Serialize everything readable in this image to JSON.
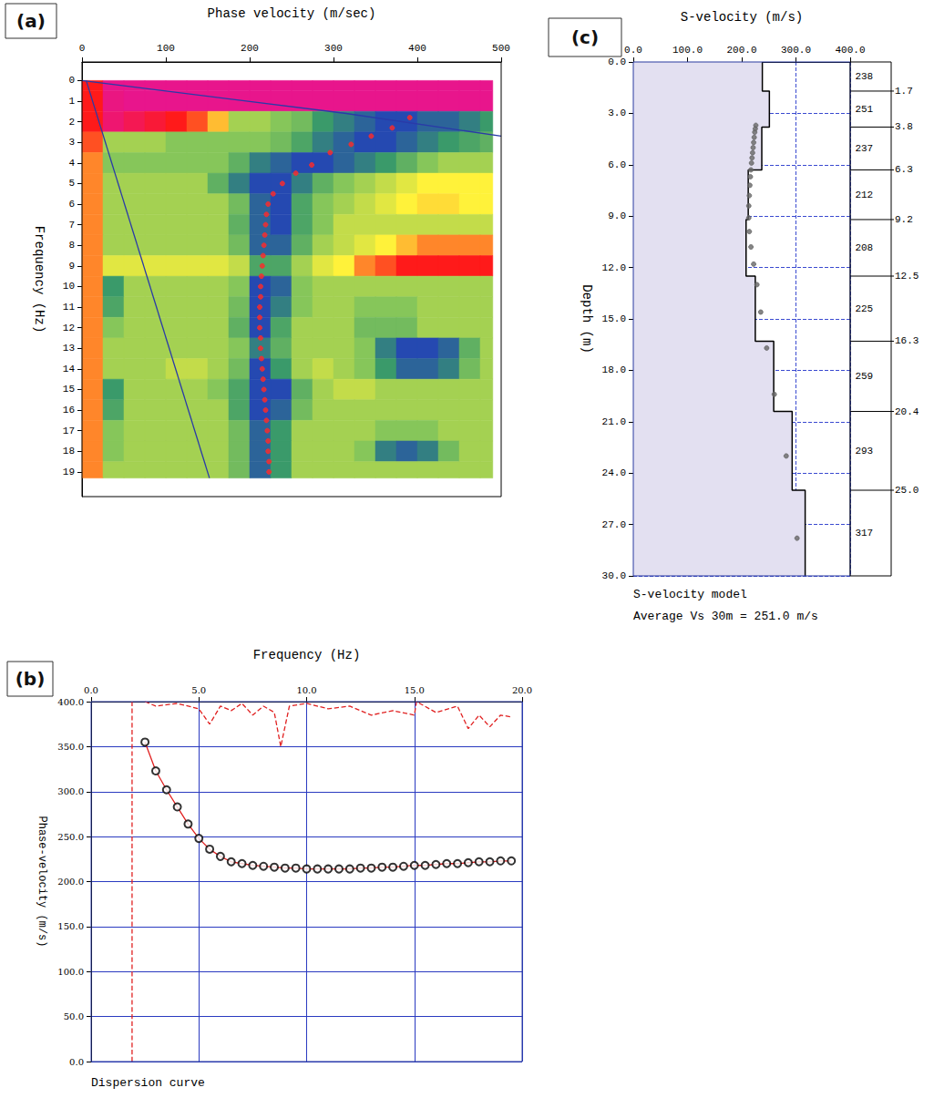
{
  "chart_data": [
    {
      "panel": "(a)",
      "type": "heatmap",
      "xlabel": "Phase velocity (m/sec)",
      "ylabel": "Frequency (Hz)",
      "xlim": [
        0,
        500
      ],
      "xticks": [
        0,
        100,
        200,
        300,
        400,
        500
      ],
      "ylim": [
        20.2,
        -0.9
      ],
      "yticks": [
        0,
        1,
        2,
        3,
        4,
        5,
        6,
        7,
        8,
        9,
        10,
        11,
        12,
        13,
        14,
        15,
        16,
        17,
        18,
        19
      ],
      "heatmap": {
        "color_range": [
          0,
          1
        ],
        "x_edges": [
          0,
          25,
          50,
          75,
          100,
          125,
          150,
          175,
          200,
          225,
          250,
          275,
          300,
          325,
          350,
          375,
          400,
          425,
          450,
          475,
          490
        ],
        "y_edges": [
          0,
          0.5,
          1.5,
          2.5,
          3.5,
          4.5,
          5.5,
          6.5,
          7.5,
          8.5,
          9.5,
          10.5,
          11.5,
          12.5,
          13.5,
          14.5,
          15.5,
          16.5,
          17.5,
          18.5,
          19.3
        ],
        "cells": [
          [
            0.2,
            0,
            0,
            0,
            0,
            0,
            0,
            0,
            0,
            0,
            0,
            0,
            0,
            0,
            0,
            0,
            0,
            0,
            0,
            0
          ],
          [
            0.2,
            0.02,
            0,
            0,
            0,
            0,
            0,
            0,
            0,
            0,
            0,
            0,
            0,
            0,
            0,
            0,
            0,
            0,
            0,
            0
          ],
          [
            0.2,
            0.05,
            0.1,
            0.15,
            0.2,
            0.25,
            0.35,
            0.55,
            0.55,
            0.6,
            0.65,
            0.8,
            0.85,
            0.9,
            0.95,
            0.95,
            0.9,
            0.9,
            0.85,
            0.8
          ],
          [
            0.25,
            0.55,
            0.55,
            0.55,
            0.6,
            0.6,
            0.6,
            0.6,
            0.6,
            0.65,
            0.75,
            0.85,
            0.9,
            0.95,
            0.95,
            0.9,
            0.85,
            0.8,
            0.75,
            0.7
          ],
          [
            0.3,
            0.6,
            0.6,
            0.6,
            0.6,
            0.6,
            0.6,
            0.7,
            0.85,
            0.9,
            0.95,
            0.95,
            0.9,
            0.85,
            0.8,
            0.7,
            0.6,
            0.55,
            0.55,
            0.55
          ],
          [
            0.3,
            0.55,
            0.55,
            0.55,
            0.55,
            0.55,
            0.7,
            0.85,
            0.95,
            0.95,
            0.85,
            0.7,
            0.6,
            0.55,
            0.5,
            0.45,
            0.4,
            0.4,
            0.4,
            0.4
          ],
          [
            0.3,
            0.55,
            0.55,
            0.55,
            0.55,
            0.55,
            0.55,
            0.65,
            0.9,
            0.95,
            0.75,
            0.6,
            0.55,
            0.5,
            0.45,
            0.4,
            0.38,
            0.38,
            0.4,
            0.4
          ],
          [
            0.3,
            0.55,
            0.55,
            0.55,
            0.55,
            0.55,
            0.55,
            0.7,
            0.9,
            0.95,
            0.75,
            0.6,
            0.5,
            0.5,
            0.5,
            0.5,
            0.5,
            0.5,
            0.5,
            0.5
          ],
          [
            0.3,
            0.55,
            0.55,
            0.55,
            0.55,
            0.55,
            0.55,
            0.65,
            0.9,
            0.9,
            0.7,
            0.55,
            0.5,
            0.45,
            0.4,
            0.35,
            0.3,
            0.3,
            0.3,
            0.3
          ],
          [
            0.3,
            0.45,
            0.45,
            0.45,
            0.45,
            0.45,
            0.45,
            0.5,
            0.75,
            0.75,
            0.55,
            0.45,
            0.4,
            0.3,
            0.25,
            0.2,
            0.2,
            0.2,
            0.2,
            0.2
          ],
          [
            0.3,
            0.8,
            0.55,
            0.55,
            0.55,
            0.55,
            0.55,
            0.6,
            0.95,
            0.9,
            0.6,
            0.55,
            0.55,
            0.55,
            0.55,
            0.55,
            0.55,
            0.55,
            0.55,
            0.55
          ],
          [
            0.3,
            0.75,
            0.55,
            0.55,
            0.55,
            0.55,
            0.55,
            0.65,
            0.95,
            0.85,
            0.6,
            0.55,
            0.55,
            0.6,
            0.6,
            0.6,
            0.55,
            0.55,
            0.55,
            0.55
          ],
          [
            0.3,
            0.6,
            0.55,
            0.55,
            0.55,
            0.55,
            0.55,
            0.7,
            0.95,
            0.75,
            0.55,
            0.55,
            0.55,
            0.65,
            0.65,
            0.65,
            0.55,
            0.55,
            0.55,
            0.55
          ],
          [
            0.3,
            0.55,
            0.55,
            0.55,
            0.55,
            0.55,
            0.55,
            0.6,
            0.85,
            0.7,
            0.55,
            0.55,
            0.55,
            0.6,
            0.85,
            0.95,
            0.95,
            0.9,
            0.7,
            0.55
          ],
          [
            0.3,
            0.55,
            0.55,
            0.55,
            0.5,
            0.5,
            0.55,
            0.65,
            0.95,
            0.8,
            0.55,
            0.5,
            0.55,
            0.6,
            0.8,
            0.9,
            0.9,
            0.85,
            0.65,
            0.55
          ],
          [
            0.3,
            0.8,
            0.55,
            0.55,
            0.55,
            0.55,
            0.6,
            0.75,
            0.95,
            0.95,
            0.7,
            0.55,
            0.5,
            0.5,
            0.55,
            0.55,
            0.55,
            0.55,
            0.55,
            0.55
          ],
          [
            0.3,
            0.75,
            0.55,
            0.55,
            0.55,
            0.55,
            0.55,
            0.75,
            0.95,
            0.9,
            0.65,
            0.55,
            0.55,
            0.55,
            0.55,
            0.55,
            0.55,
            0.55,
            0.55,
            0.55
          ],
          [
            0.3,
            0.6,
            0.55,
            0.55,
            0.55,
            0.55,
            0.55,
            0.65,
            0.9,
            0.8,
            0.55,
            0.55,
            0.55,
            0.55,
            0.6,
            0.6,
            0.6,
            0.55,
            0.55,
            0.55
          ],
          [
            0.3,
            0.6,
            0.55,
            0.55,
            0.55,
            0.55,
            0.55,
            0.65,
            0.9,
            0.8,
            0.55,
            0.55,
            0.55,
            0.6,
            0.85,
            0.9,
            0.85,
            0.65,
            0.55,
            0.55
          ],
          [
            0.3,
            0.55,
            0.55,
            0.55,
            0.55,
            0.55,
            0.55,
            0.65,
            0.9,
            0.8,
            0.55,
            0.55,
            0.55,
            0.55,
            0.55,
            0.55,
            0.55,
            0.55,
            0.55,
            0.55
          ]
        ]
      },
      "series": [
        {
          "type": "line",
          "color": "#2a3aa8",
          "line_style": "solid",
          "x": [
            0,
            315,
            500
          ],
          "values": [
            0,
            1.6,
            2.7
          ]
        },
        {
          "type": "line",
          "color": "#2a3aa8",
          "line_style": "solid",
          "x": [
            5,
            152
          ],
          "values": [
            0,
            19.3
          ]
        },
        {
          "type": "scatter",
          "color": "#ff2a2a",
          "marker": "circle",
          "x": [
            391,
            370,
            345,
            321,
            296,
            274,
            255,
            239,
            228,
            222,
            220,
            219,
            218,
            217,
            216,
            215,
            214,
            213,
            213,
            212,
            212,
            212,
            213,
            213,
            214,
            215,
            216,
            217,
            218,
            219,
            220,
            221,
            222,
            222,
            223,
            223
          ],
          "values": [
            1.8,
            2.3,
            2.7,
            3.1,
            3.5,
            4.1,
            4.5,
            5.0,
            5.5,
            6.0,
            6.5,
            7.0,
            7.5,
            8.0,
            8.5,
            9.0,
            9.5,
            10.0,
            10.5,
            11.0,
            11.5,
            12.0,
            12.5,
            13.0,
            13.5,
            14.0,
            14.5,
            15.0,
            15.5,
            16.0,
            16.5,
            17.0,
            17.5,
            18.0,
            18.5,
            19.0
          ]
        }
      ]
    },
    {
      "panel": "(b)",
      "type": "line",
      "title": "Dispersion curve",
      "xlabel": "Frequency (Hz)",
      "ylabel": "Phase-velocity (m/s)",
      "xlim": [
        0,
        20
      ],
      "xticks": [
        {
          "value": 0,
          "label": "0.0"
        },
        {
          "value": 5,
          "label": "5.0"
        },
        {
          "value": 10,
          "label": "10.0"
        },
        {
          "value": 15,
          "label": "15.0"
        },
        {
          "value": 20,
          "label": "20.0"
        }
      ],
      "ylim": [
        0,
        400
      ],
      "yticks": [
        {
          "value": 0,
          "label": "0.0"
        },
        {
          "value": 50,
          "label": "50.0"
        },
        {
          "value": 100,
          "label": "100.0"
        },
        {
          "value": 150,
          "label": "150.0"
        },
        {
          "value": 200,
          "label": "200.0"
        },
        {
          "value": 250,
          "label": "250.0"
        },
        {
          "value": 300,
          "label": "300.0"
        },
        {
          "value": 350,
          "label": "350.0"
        },
        {
          "value": 400,
          "label": "400.0"
        }
      ],
      "grid": true,
      "series": [
        {
          "type": "line",
          "color": "#e02020",
          "line_style": "dashed",
          "x": [
            2.5,
            3,
            4,
            5,
            5.5,
            6,
            6.5,
            7,
            7.5,
            8,
            8.5,
            8.8,
            9.2,
            10,
            11,
            12,
            13,
            14,
            15,
            15.1,
            16,
            17,
            17.5,
            18,
            18.5,
            19,
            19.5
          ],
          "values": [
            400,
            395,
            398,
            392,
            375,
            395,
            390,
            398,
            385,
            395,
            388,
            350,
            395,
            398,
            392,
            395,
            385,
            390,
            385,
            400,
            388,
            395,
            370,
            385,
            372,
            385,
            383
          ]
        },
        {
          "type": "line",
          "color": "#e02020",
          "line_style": "dashed",
          "x": [
            1.9,
            1.9
          ],
          "values": [
            0,
            400
          ]
        },
        {
          "type": "line",
          "color": "#e02020",
          "line_style": "solid",
          "x": [
            2.5,
            3.0,
            3.5,
            4.0,
            4.5,
            5.0,
            5.5,
            6.0,
            6.5,
            7.0,
            7.5,
            8.0,
            8.5,
            9.0,
            9.5,
            10.0,
            10.5,
            11.0,
            11.5,
            12.0,
            12.5,
            13.0,
            13.5,
            14.0,
            14.5,
            15.0,
            15.5,
            16.0,
            16.5,
            17.0,
            17.5,
            18.0,
            18.5,
            19.0,
            19.5
          ],
          "values": [
            355,
            323,
            302,
            283,
            264,
            248,
            236,
            228,
            222,
            220,
            218,
            217,
            216,
            215,
            215,
            214,
            214,
            214,
            214,
            214,
            215,
            215,
            216,
            216,
            217,
            218,
            218,
            219,
            220,
            220,
            221,
            222,
            222,
            223,
            223
          ]
        },
        {
          "type": "scatter",
          "color": "#000000",
          "marker": "open_circle",
          "x": [
            2.5,
            3.0,
            3.5,
            4.0,
            4.5,
            5.0,
            5.5,
            6.0,
            6.5,
            7.0,
            7.5,
            8.0,
            8.5,
            9.0,
            9.5,
            10.0,
            10.5,
            11.0,
            11.5,
            12.0,
            12.5,
            13.0,
            13.5,
            14.0,
            14.5,
            15.0,
            15.5,
            16.0,
            16.5,
            17.0,
            17.5,
            18.0,
            18.5,
            19.0,
            19.5
          ],
          "values": [
            355,
            323,
            302,
            283,
            264,
            248,
            236,
            228,
            222,
            220,
            218,
            217,
            216,
            215,
            215,
            214,
            214,
            214,
            214,
            214,
            215,
            215,
            216,
            216,
            217,
            218,
            218,
            219,
            220,
            220,
            221,
            222,
            222,
            223,
            223
          ]
        }
      ]
    },
    {
      "panel": "(c)",
      "type": "step",
      "title": "S-velocity model",
      "annotations": [
        "Average Vs 30m = 251.0 m/s"
      ],
      "xlabel": "S-velocity (m/s)",
      "ylabel": "Depth (m)",
      "xlim": [
        0,
        400
      ],
      "xticks": [
        {
          "value": 0,
          "label": "0.0"
        },
        {
          "value": 100,
          "label": "100.0"
        },
        {
          "value": 200,
          "label": "200.0"
        },
        {
          "value": 300,
          "label": "300.0"
        },
        {
          "value": 400,
          "label": "400.0"
        }
      ],
      "ylim": [
        30,
        0
      ],
      "yticks": [
        {
          "value": 0,
          "label": "0.0"
        },
        {
          "value": 3,
          "label": "3.0"
        },
        {
          "value": 6,
          "label": "6.0"
        },
        {
          "value": 9,
          "label": "9.0"
        },
        {
          "value": 12,
          "label": "12.0"
        },
        {
          "value": 15,
          "label": "15.0"
        },
        {
          "value": 18,
          "label": "18.0"
        },
        {
          "value": 21,
          "label": "21.0"
        },
        {
          "value": 24,
          "label": "24.0"
        },
        {
          "value": 27,
          "label": "27.0"
        },
        {
          "value": 30,
          "label": "30.0"
        }
      ],
      "grid": true,
      "layers": {
        "velocities": [
          238,
          251,
          237,
          212,
          208,
          225,
          259,
          293,
          317
        ],
        "depths": [
          1.7,
          3.8,
          6.3,
          9.2,
          12.5,
          16.3,
          20.4,
          {
            "value": 25,
            "label": "25.0"
          }
        ]
      },
      "color": "#000000",
      "series": [
        {
          "type": "scatter",
          "color": "#666666",
          "marker": "circle",
          "x": [
            226,
            225,
            224,
            223,
            222,
            221,
            220,
            219,
            218,
            217,
            216,
            215,
            214,
            213,
            213,
            214,
            217,
            222,
            228,
            235,
            246,
            260,
            282,
            302
          ],
          "values": [
            3.7,
            3.9,
            4.1,
            4.4,
            4.7,
            5.0,
            5.3,
            5.6,
            5.9,
            6.3,
            6.7,
            7.2,
            7.8,
            8.4,
            9.1,
            9.9,
            10.8,
            11.8,
            13.0,
            14.6,
            16.7,
            19.4,
            23.0,
            27.8
          ]
        }
      ]
    }
  ]
}
